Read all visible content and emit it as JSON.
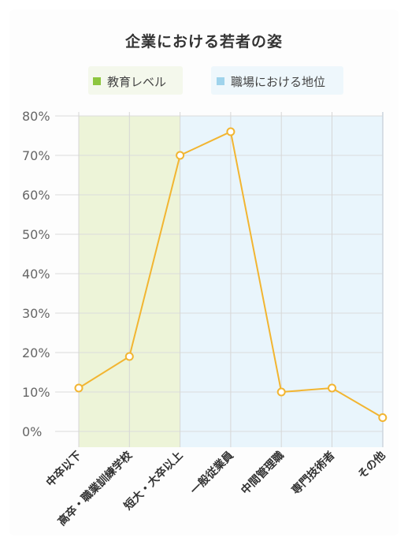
{
  "chart_data": {
    "type": "line",
    "title": "企業における若者の姿",
    "categories": [
      "中卒以下",
      "高卒・職業訓練学校",
      "短大・大卒以上",
      "一般従業員",
      "中間管理職",
      "専門技術者",
      "その他"
    ],
    "series": [
      {
        "values": [
          11,
          19,
          70,
          76,
          10,
          11,
          3.5
        ]
      }
    ],
    "regions": [
      {
        "name": "教育レベル",
        "categories": [
          "中卒以下",
          "高卒・職業訓練学校",
          "短大・大卒以上"
        ],
        "color": "#edf4d8"
      },
      {
        "name": "職場における地位",
        "categories": [
          "一般従業員",
          "中間管理職",
          "専門技術者",
          "その他"
        ],
        "color": "#e9f5fc"
      }
    ],
    "yticks": [
      "0%",
      "10%",
      "20%",
      "30%",
      "40%",
      "50%",
      "60%",
      "70%",
      "80%"
    ],
    "ylim": [
      0,
      80
    ],
    "grid": true,
    "legend_position": "top",
    "colors": {
      "line": "#f2b531",
      "education_swatch": "#8dc63f",
      "workplace_swatch": "#9fd3ec",
      "education_legend_bg": "#f4f8ec",
      "workplace_legend_bg": "#eef7fc"
    }
  }
}
